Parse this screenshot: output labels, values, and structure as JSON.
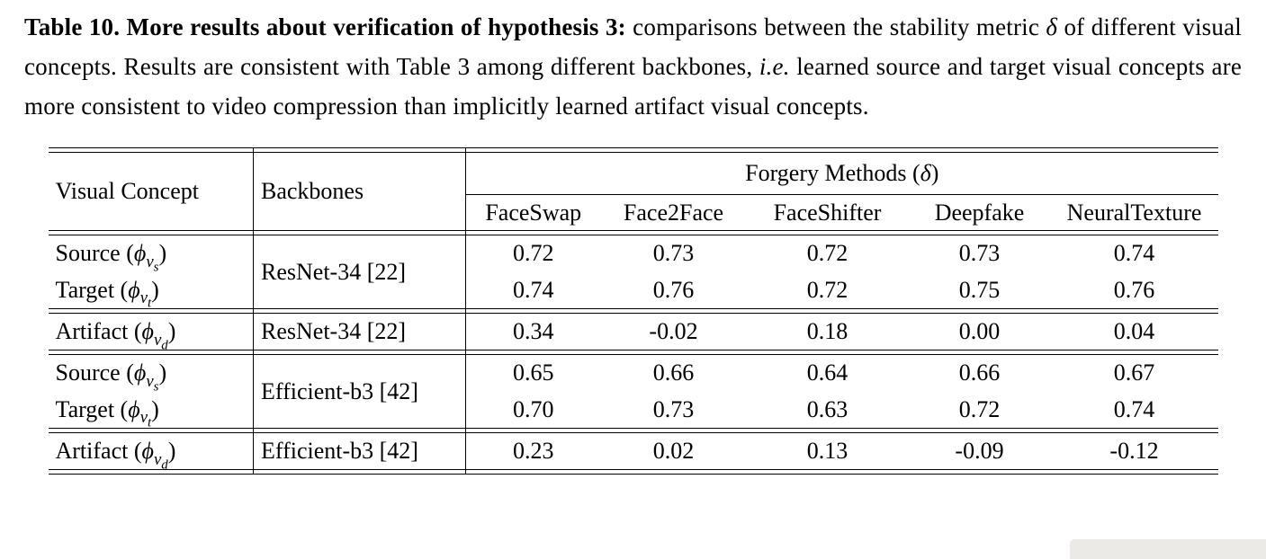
{
  "caption": {
    "bold_text": "Table 10. More results about verification of hypothesis 3:",
    "rest_html": " comparisons between the stability metric <i>δ</i> of different visual concepts. Results are consistent with Table 3 among different backbones, <i>i.e.</i> learned source and target visual concepts are more consistent to video compression than implicitly learned artifact visual concepts."
  },
  "table": {
    "header": {
      "visual_concept": "Visual Concept",
      "backbones": "Backbones",
      "forgery_group_html": "Forgery Methods (<i>δ</i>)",
      "methods": [
        "FaceSwap",
        "Face2Face",
        "FaceShifter",
        "Deepfake",
        "NeuralTexture"
      ]
    },
    "rows": [
      {
        "concept_html": "Source (<i>ϕ<sub>v<sub>s</sub></sub></i>)",
        "backbone": "ResNet-34 [22]",
        "values": [
          "0.72",
          "0.73",
          "0.72",
          "0.73",
          "0.74"
        ]
      },
      {
        "concept_html": "Target (<i>ϕ<sub>v<sub>t</sub></sub></i>)",
        "values": [
          "0.74",
          "0.76",
          "0.72",
          "0.75",
          "0.76"
        ]
      },
      {
        "concept_html": "Artifact (<i>ϕ<sub>v<sub>d</sub></sub></i>)",
        "backbone": "ResNet-34 [22]",
        "values": [
          "0.34",
          "-0.02",
          "0.18",
          "0.00",
          "0.04"
        ]
      },
      {
        "concept_html": "Source (<i>ϕ<sub>v<sub>s</sub></sub></i>)",
        "backbone": "Efficient-b3 [42]",
        "values": [
          "0.65",
          "0.66",
          "0.64",
          "0.66",
          "0.67"
        ]
      },
      {
        "concept_html": "Target (<i>ϕ<sub>v<sub>t</sub></sub></i>)",
        "values": [
          "0.70",
          "0.73",
          "0.63",
          "0.72",
          "0.74"
        ]
      },
      {
        "concept_html": "Artifact (<i>ϕ<sub>v<sub>d</sub></sub></i>)",
        "backbone": "Efficient-b3 [42]",
        "values": [
          "0.23",
          "0.02",
          "0.13",
          "-0.09",
          "-0.12"
        ]
      }
    ]
  }
}
